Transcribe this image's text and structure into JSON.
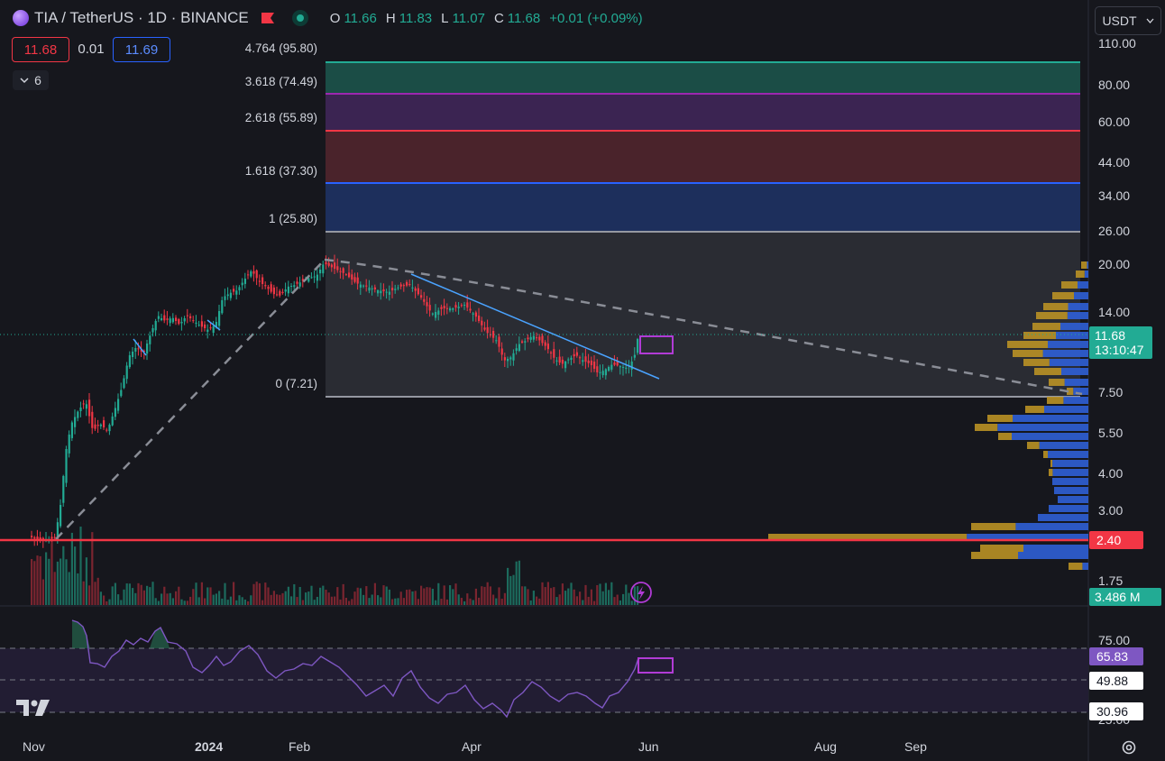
{
  "header": {
    "symbol": "TIA / TetherUS · 1D · BINANCE",
    "ohlc": [
      {
        "k": "O",
        "v": "11.66"
      },
      {
        "k": "H",
        "v": "11.83"
      },
      {
        "k": "L",
        "v": "11.07"
      },
      {
        "k": "C",
        "v": "11.68"
      }
    ],
    "change": "+0.01 (+0.09%)",
    "sell_price": "11.68",
    "spread": "0.01",
    "buy_price": "11.69",
    "indicators_count": "6",
    "currency": "USDT"
  },
  "price_axis": [
    "110.00",
    "80.00",
    "60.00",
    "44.00",
    "34.00",
    "26.00",
    "20.00",
    "14.00",
    "7.50",
    "5.50",
    "4.00",
    "3.00",
    "1.75"
  ],
  "rsi_axis": [
    "75.00",
    "25.00"
  ],
  "badges": {
    "last_price": "11.68",
    "countdown": "13:10:47",
    "support_level": "2.40",
    "volume": "3.486 M",
    "rsi_value": "65.83",
    "rsi_ma": "49.88",
    "rsi_low": "30.96"
  },
  "fib_levels": [
    {
      "label": "4.764 (95.80)",
      "color": "#22ab94"
    },
    {
      "label": "3.618 (74.49)",
      "color": "#9c27b0"
    },
    {
      "label": "2.618 (55.89)",
      "color": "#f23645"
    },
    {
      "label": "1.618 (37.30)",
      "color": "#2962ff"
    },
    {
      "label": "1 (25.80)",
      "color": "#787b86"
    },
    {
      "label": "0 (7.21)",
      "color": "#787b86"
    }
  ],
  "time_axis": [
    "Nov",
    "2024",
    "Feb",
    "Apr",
    "Jun",
    "Aug",
    "Sep"
  ],
  "colors": {
    "up": "#22ab94",
    "down": "#f23645",
    "rsi": "#7e57c2",
    "trend": "#4aa3ff"
  }
}
